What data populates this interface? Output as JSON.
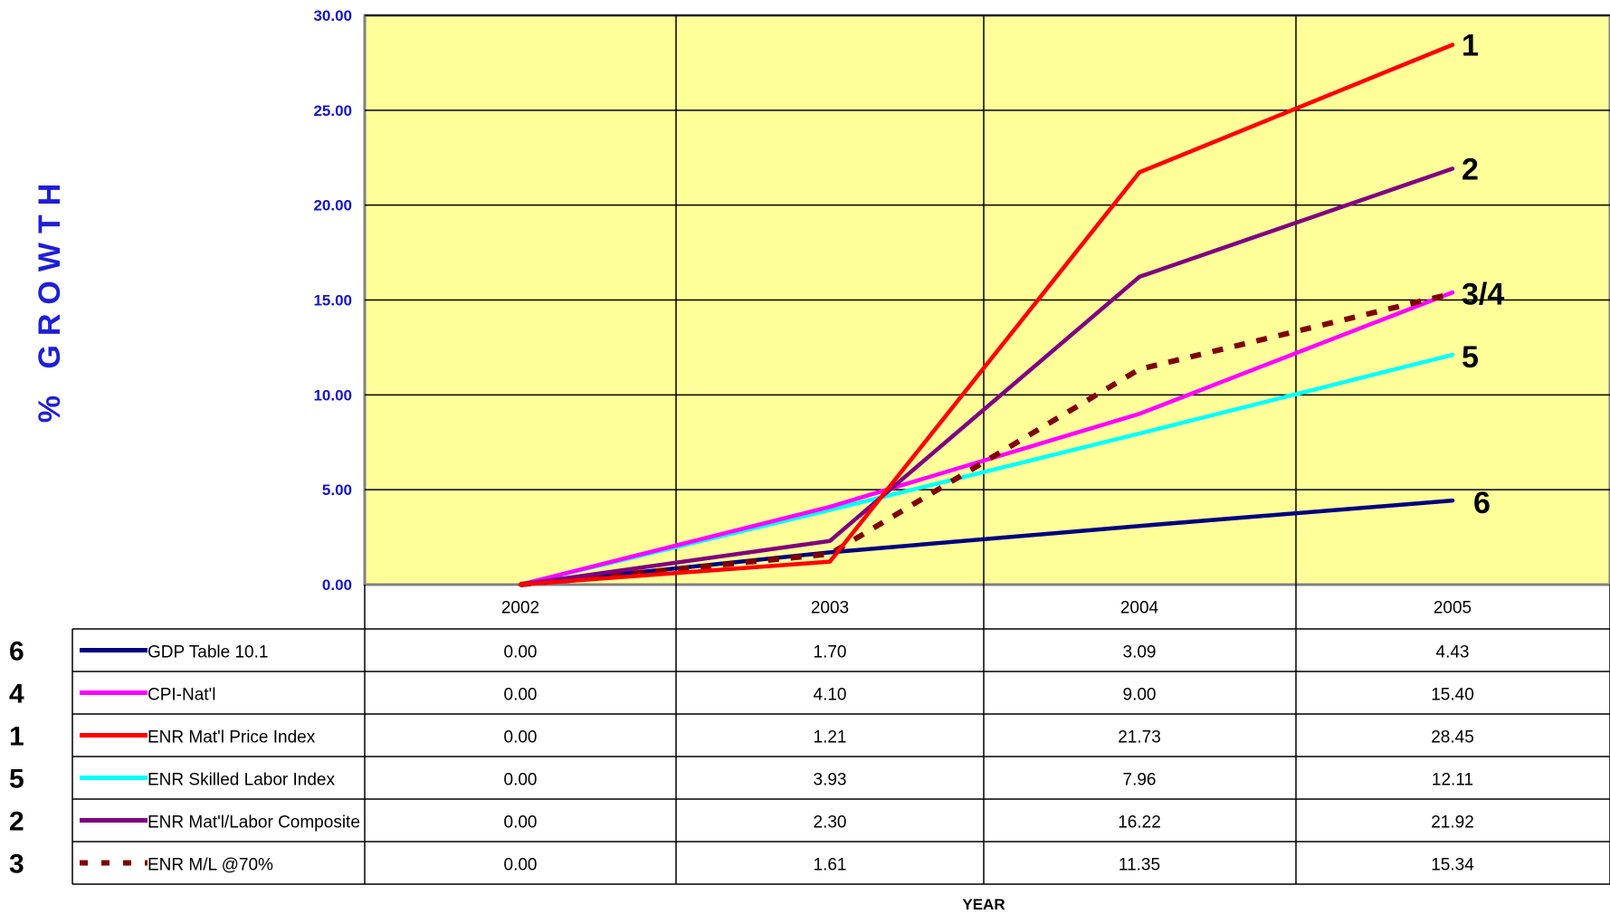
{
  "chart_data": {
    "type": "line",
    "ylabel": "% GROWTH",
    "xlabel": "YEAR",
    "ylim": [
      0,
      30
    ],
    "y_ticks": [
      "0.00",
      "5.00",
      "10.00",
      "15.00",
      "20.00",
      "25.00",
      "30.00"
    ],
    "categories": [
      "2002",
      "2003",
      "2004",
      "2005"
    ],
    "grid": true,
    "plot_background": "#FFFF99",
    "legend_placement": "data table below chart",
    "series": [
      {
        "id": "6",
        "name": "GDP Table 10.1",
        "color": "#000080",
        "dash": false,
        "values": [
          0.0,
          1.7,
          3.09,
          4.43
        ],
        "labels": [
          "0.00",
          "1.70",
          "3.09",
          "4.43"
        ]
      },
      {
        "id": "4",
        "name": "CPI-Nat'l",
        "color": "#FF00FF",
        "dash": false,
        "values": [
          0.0,
          4.1,
          9.0,
          15.4
        ],
        "labels": [
          "0.00",
          "4.10",
          "9.00",
          "15.40"
        ]
      },
      {
        "id": "1",
        "name": "ENR Mat'l Price Index",
        "color": "#FF0000",
        "dash": false,
        "values": [
          0.0,
          1.21,
          21.73,
          28.45
        ],
        "labels": [
          "0.00",
          "1.21",
          "21.73",
          "28.45"
        ]
      },
      {
        "id": "5",
        "name": "ENR Skilled Labor Index",
        "color": "#00FFFF",
        "dash": false,
        "values": [
          0.0,
          3.93,
          7.96,
          12.11
        ],
        "labels": [
          "0.00",
          "3.93",
          "7.96",
          "12.11"
        ]
      },
      {
        "id": "2",
        "name": "ENR Mat'l/Labor Composite",
        "color": "#800080",
        "dash": false,
        "values": [
          0.0,
          2.3,
          16.22,
          21.92
        ],
        "labels": [
          "0.00",
          "2.30",
          "16.22",
          "21.92"
        ]
      },
      {
        "id": "3",
        "name": "ENR M/L @70%",
        "color": "#800000",
        "dash": true,
        "values": [
          0.0,
          1.61,
          11.35,
          15.34
        ],
        "labels": [
          "0.00",
          "1.61",
          "11.35",
          "15.34"
        ]
      }
    ],
    "end_labels": [
      {
        "text": "1",
        "series": "1"
      },
      {
        "text": "2",
        "series": "2"
      },
      {
        "text": "3/4",
        "series": "3"
      },
      {
        "text": "5",
        "series": "5"
      },
      {
        "text": "6",
        "series": "6"
      }
    ]
  }
}
